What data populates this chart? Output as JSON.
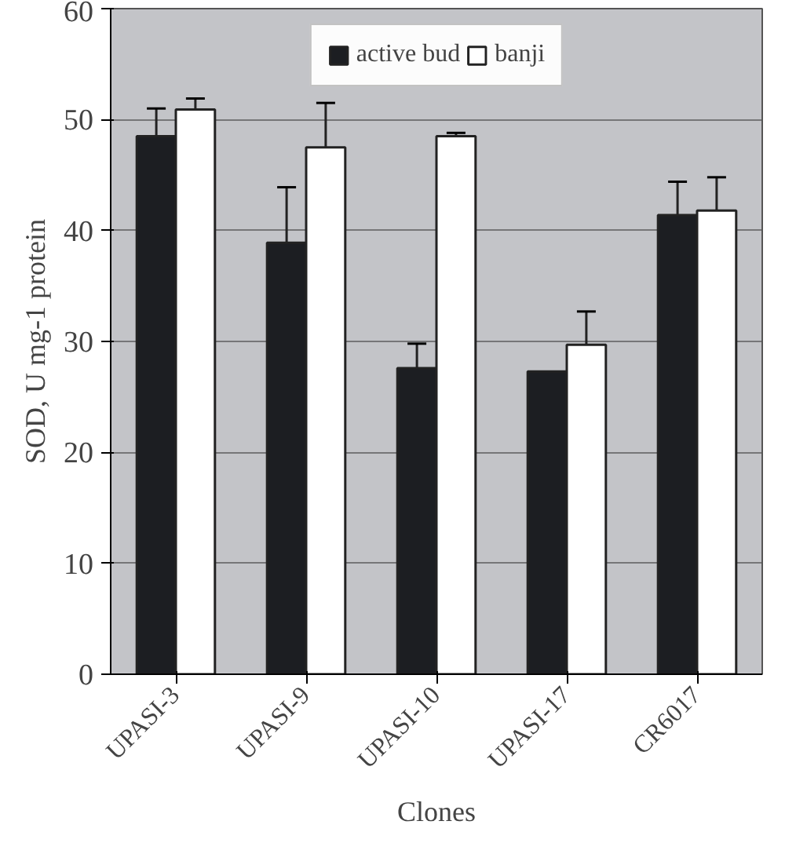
{
  "chart_data": {
    "type": "bar",
    "xlabel": "Clones",
    "ylabel": "SOD, U mg-1 protein",
    "categories": [
      "UPASI-3",
      "UPASI-9",
      "UPASI-10",
      "UPASI-17",
      "CR6017"
    ],
    "series": [
      {
        "name": "active bud",
        "color": "#1c1e22",
        "values": [
          48.5,
          38.9,
          27.6,
          27.3,
          41.4
        ],
        "errors": [
          2.5,
          5,
          2.2,
          null,
          3
        ]
      },
      {
        "name": "banji",
        "color": "#ffffff",
        "values": [
          50.9,
          47.5,
          48.5,
          29.7,
          41.8
        ],
        "errors": [
          1,
          4,
          0.3,
          3,
          3
        ]
      }
    ],
    "ylim": [
      0,
      60
    ],
    "yticks": [
      0,
      10,
      20,
      30,
      40,
      50,
      60
    ],
    "grid": "y",
    "legend": "top"
  }
}
